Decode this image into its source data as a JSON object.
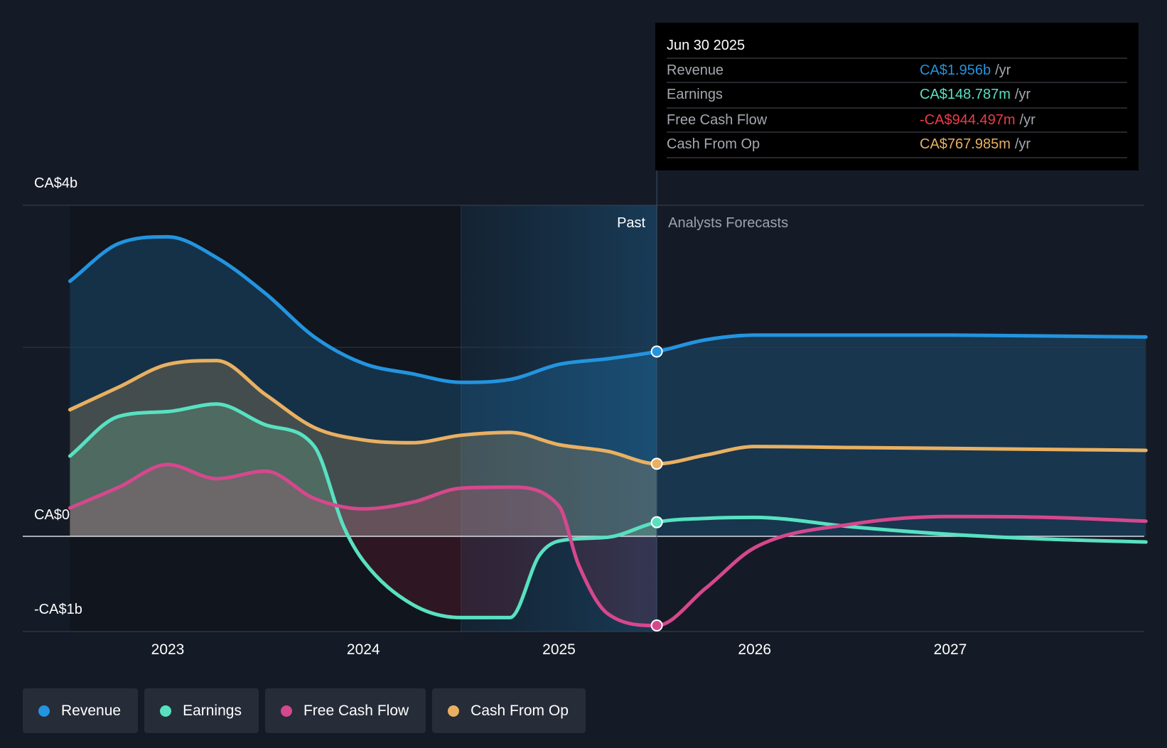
{
  "chart_data": {
    "type": "line",
    "y_axis": {
      "labels": [
        {
          "value": 4,
          "text": "CA$4b"
        },
        {
          "value": 0,
          "text": "CA$0"
        },
        {
          "value": -1,
          "text": "-CA$1b"
        }
      ],
      "ylim": [
        -1.02,
        3.5
      ],
      "gridlines": [
        0,
        2.0
      ]
    },
    "x_axis": {
      "ticks": [
        "2023",
        "2024",
        "2025",
        "2026",
        "2027"
      ],
      "tick_values": [
        2023.0,
        2024.0,
        2025.0,
        2026.0,
        2027.0
      ],
      "xlim": [
        2022.26,
        2028.0
      ]
    },
    "past_label": "Past",
    "forecast_label": "Analysts Forecasts",
    "highlight_start": 2024.5,
    "divider_x": 2025.5,
    "data_start": 2022.5,
    "series": [
      {
        "name": "Revenue",
        "color": "#2394df",
        "x": [
          2022.5,
          2022.75,
          2023.0,
          2023.25,
          2023.5,
          2023.75,
          2024.0,
          2024.25,
          2024.5,
          2024.75,
          2025.0,
          2025.25,
          2025.5,
          2025.75,
          2026.0,
          2026.5,
          2027.0,
          2027.5,
          2028.0
        ],
        "values": [
          2.7,
          3.1,
          3.17,
          2.95,
          2.57,
          2.11,
          1.83,
          1.72,
          1.63,
          1.66,
          1.82,
          1.88,
          1.956,
          2.08,
          2.13,
          2.13,
          2.13,
          2.12,
          2.11
        ]
      },
      {
        "name": "Earnings",
        "color": "#58e1c1",
        "x": [
          2022.5,
          2022.75,
          2023.0,
          2023.25,
          2023.5,
          2023.75,
          2023.9,
          2024.0,
          2024.25,
          2024.5,
          2024.75,
          2024.9,
          2025.0,
          2025.25,
          2025.5,
          2025.75,
          2026.0,
          2026.5,
          2027.0,
          2027.5,
          2028.0
        ],
        "values": [
          0.85,
          1.27,
          1.32,
          1.4,
          1.18,
          0.95,
          0.1,
          -0.26,
          -0.72,
          -0.86,
          -0.86,
          -0.2,
          -0.05,
          -0.01,
          0.149,
          0.19,
          0.2,
          0.1,
          0.02,
          -0.03,
          -0.06
        ]
      },
      {
        "name": "Free Cash Flow",
        "color": "#d5488d",
        "x": [
          2022.5,
          2022.75,
          2023.0,
          2023.25,
          2023.5,
          2023.75,
          2024.0,
          2024.25,
          2024.5,
          2024.75,
          2025.0,
          2025.1,
          2025.25,
          2025.5,
          2025.75,
          2026.0,
          2026.5,
          2027.0,
          2027.5,
          2028.0
        ],
        "values": [
          0.3,
          0.52,
          0.76,
          0.61,
          0.69,
          0.4,
          0.29,
          0.36,
          0.51,
          0.52,
          0.32,
          -0.3,
          -0.82,
          -0.944,
          -0.55,
          -0.12,
          0.13,
          0.21,
          0.2,
          0.16
        ]
      },
      {
        "name": "Cash From Op",
        "color": "#e9b062",
        "x": [
          2022.5,
          2022.75,
          2023.0,
          2023.25,
          2023.5,
          2023.75,
          2024.0,
          2024.25,
          2024.5,
          2024.75,
          2025.0,
          2025.25,
          2025.5,
          2025.75,
          2026.0,
          2026.5,
          2027.0,
          2027.5,
          2028.0
        ],
        "values": [
          1.34,
          1.58,
          1.82,
          1.86,
          1.5,
          1.15,
          1.02,
          0.99,
          1.07,
          1.1,
          0.97,
          0.9,
          0.768,
          0.86,
          0.95,
          0.94,
          0.93,
          0.92,
          0.91
        ]
      }
    ],
    "tooltip": {
      "date": "Jun 30 2025",
      "rows": [
        {
          "label": "Revenue",
          "value": "CA$1.956b",
          "unit": "/yr",
          "color": "#2394df"
        },
        {
          "label": "Earnings",
          "value": "CA$148.787m",
          "unit": "/yr",
          "color": "#58e1c1"
        },
        {
          "label": "Free Cash Flow",
          "value": "-CA$944.497m",
          "unit": "/yr",
          "color": "#ee3b47"
        },
        {
          "label": "Cash From Op",
          "value": "CA$767.985m",
          "unit": "/yr",
          "color": "#e9b062"
        }
      ]
    },
    "legend": [
      {
        "label": "Revenue",
        "color": "#2394df"
      },
      {
        "label": "Earnings",
        "color": "#58e1c1"
      },
      {
        "label": "Free Cash Flow",
        "color": "#d5488d"
      },
      {
        "label": "Cash From Op",
        "color": "#e9b062"
      }
    ]
  }
}
